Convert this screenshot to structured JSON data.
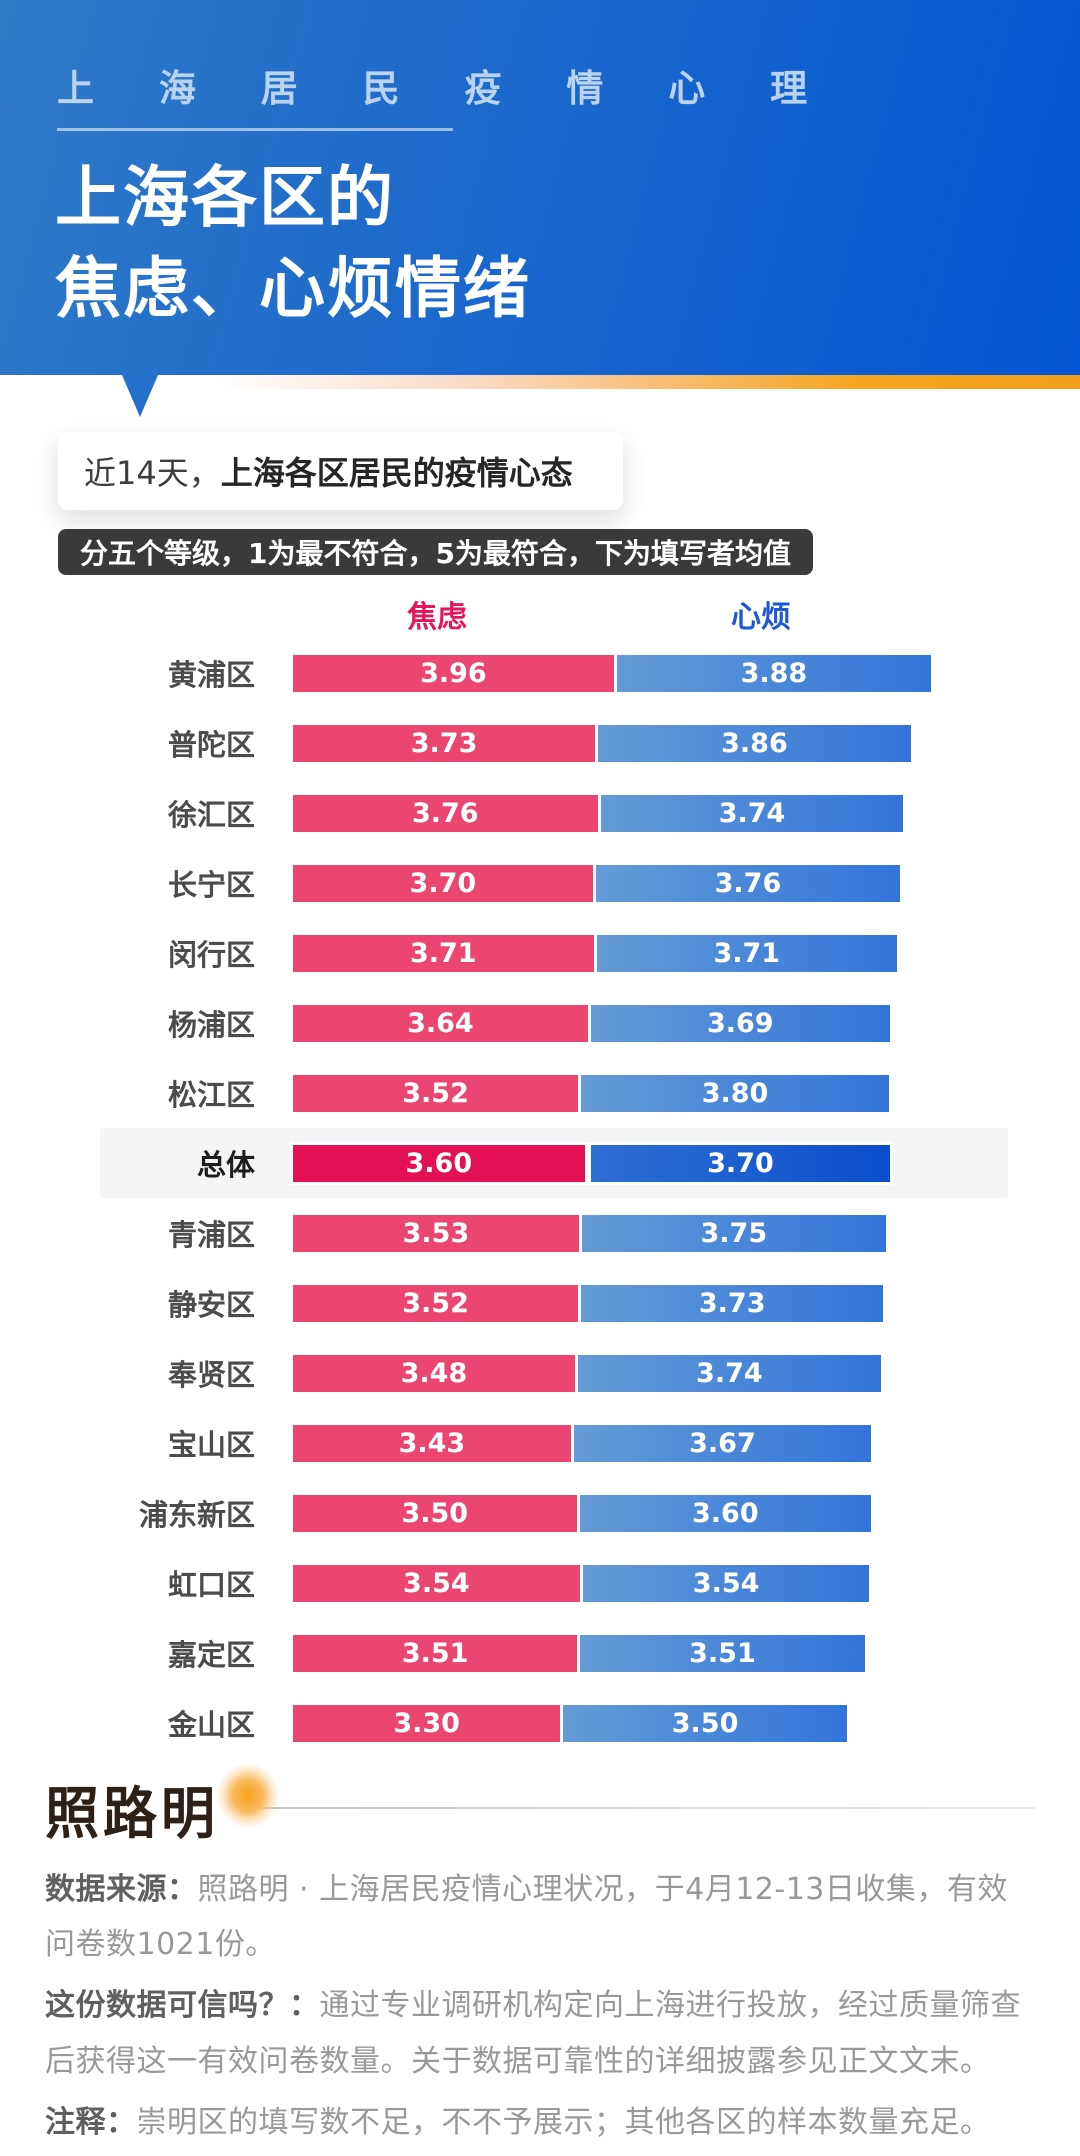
{
  "header": {
    "eyebrow": "上 海 居 民 疫 情 心 理",
    "title_line1": "上海各区的",
    "title_line2": "焦虑、心烦情绪"
  },
  "bubble": {
    "prefix": "近14天，",
    "bold": "上海各区居民的疫情心态"
  },
  "scale_badge": "分五个等级，1为最不符合，5为最符合，下为填写者均值",
  "chart_data": {
    "type": "bar",
    "orientation": "horizontal",
    "layout": "paired-adjacent-bars",
    "xlim": [
      0,
      5
    ],
    "grid": false,
    "legend_position": "top",
    "series": [
      {
        "key": "anxiety",
        "name": "焦虑",
        "color": "#ea4671"
      },
      {
        "key": "annoyed",
        "name": "心烦",
        "color_start": "#649bd6",
        "color_end": "#3274da"
      }
    ],
    "rows": [
      {
        "label": "黄浦区",
        "anxiety": "3.96",
        "annoyed": "3.88",
        "is_total": false
      },
      {
        "label": "普陀区",
        "anxiety": "3.73",
        "annoyed": "3.86",
        "is_total": false
      },
      {
        "label": "徐汇区",
        "anxiety": "3.76",
        "annoyed": "3.74",
        "is_total": false
      },
      {
        "label": "长宁区",
        "anxiety": "3.70",
        "annoyed": "3.76",
        "is_total": false
      },
      {
        "label": "闵行区",
        "anxiety": "3.71",
        "annoyed": "3.71",
        "is_total": false
      },
      {
        "label": "杨浦区",
        "anxiety": "3.64",
        "annoyed": "3.69",
        "is_total": false
      },
      {
        "label": "松江区",
        "anxiety": "3.52",
        "annoyed": "3.80",
        "is_total": false
      },
      {
        "label": "总体",
        "anxiety": "3.60",
        "annoyed": "3.70",
        "is_total": true
      },
      {
        "label": "青浦区",
        "anxiety": "3.53",
        "annoyed": "3.75",
        "is_total": false
      },
      {
        "label": "静安区",
        "anxiety": "3.52",
        "annoyed": "3.73",
        "is_total": false
      },
      {
        "label": "奉贤区",
        "anxiety": "3.48",
        "annoyed": "3.74",
        "is_total": false
      },
      {
        "label": "宝山区",
        "anxiety": "3.43",
        "annoyed": "3.67",
        "is_total": false
      },
      {
        "label": "浦东新区",
        "anxiety": "3.50",
        "annoyed": "3.60",
        "is_total": false
      },
      {
        "label": "虹口区",
        "anxiety": "3.54",
        "annoyed": "3.54",
        "is_total": false
      },
      {
        "label": "嘉定区",
        "anxiety": "3.51",
        "annoyed": "3.51",
        "is_total": false
      },
      {
        "label": "金山区",
        "anxiety": "3.30",
        "annoyed": "3.50",
        "is_total": false
      }
    ]
  },
  "footer": {
    "logo": "照路明",
    "source_label": "数据来源：",
    "source_text": "照路明 · 上海居民疫情心理状况，于4月12-13日收集，有效问卷数1021份。",
    "trust_label": "这份数据可信吗？：",
    "trust_text": "通过专业调研机构定向上海进行投放，经过质量筛查后获得这一有效问卷数量。关于数据可靠性的详细披露参见正文文末。",
    "note_label": "注释：",
    "note_text": "崇明区的填写数不足，不不予展示；其他各区的样本数量充足。"
  },
  "colors": {
    "header_gradient_start": "#2f7ac5",
    "header_gradient_end": "#0556d2",
    "accent_orange": "#f5a41d",
    "anxiety_pink": "#ea4671",
    "anxiety_pink_total": "#e31055",
    "annoyed_blue_start": "#649bd6",
    "annoyed_blue_end": "#3274da",
    "annoyed_blue_total_end": "#0a4ecb",
    "badge_bg": "#3b3a3a",
    "highlight_band": "#f4f5f6"
  }
}
